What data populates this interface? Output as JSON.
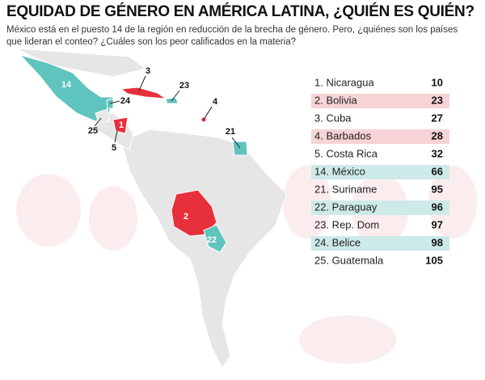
{
  "header": {
    "title": "EQUIDAD DE GÉNERO EN AMÉRICA LATINA, ¿QUIÉN ES QUIÉN?",
    "subtitle": "México está en el puesto 14 de la región en reducción de la brecha de género. Pero, ¿quiénes son los países que lideran el conteo? ¿Cuáles son los peor calificados en la materia?"
  },
  "map": {
    "labels": [
      14,
      3,
      23,
      24,
      4,
      25,
      1,
      5,
      21,
      2,
      22
    ]
  },
  "table": {
    "rows": [
      {
        "label": "1. Nicaragua",
        "value": 10
      },
      {
        "label": "2. Bolivia",
        "value": 23,
        "color": "#f6d3d6"
      },
      {
        "label": "3. Cuba",
        "value": 27
      },
      {
        "label": "4. Barbados",
        "value": 28,
        "color": "#f6d3d6"
      },
      {
        "label": "5. Costa Rica",
        "value": 32
      },
      {
        "label": "14. México",
        "value": 66,
        "color": "#cdeae8"
      },
      {
        "label": "21. Suriname",
        "value": 95
      },
      {
        "label": "22. Paraguay",
        "value": 96,
        "color": "#cdeae8"
      },
      {
        "label": "23. Rep. Dom",
        "value": 97
      },
      {
        "label": "24. Belice",
        "value": 98,
        "color": "#cdeae8"
      },
      {
        "label": "25. Guatemala",
        "value": 105
      }
    ]
  }
}
